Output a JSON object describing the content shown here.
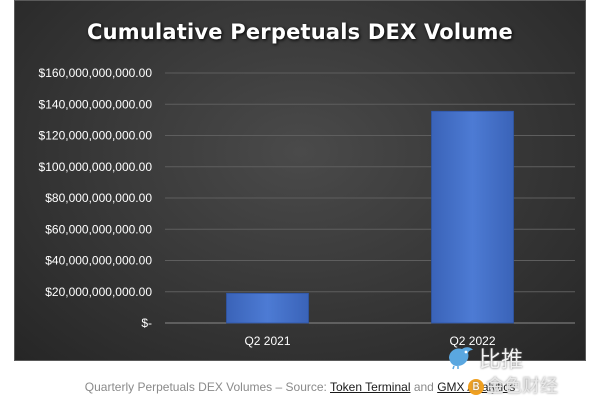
{
  "chart_data": {
    "type": "bar",
    "title": "Cumulative Perpetuals DEX Volume",
    "categories": [
      "Q2 2021",
      "Q2 2022"
    ],
    "values": [
      19000000000,
      135500000000
    ],
    "ylim": [
      0,
      160000000000
    ],
    "yticks": [
      0,
      20000000000,
      40000000000,
      60000000000,
      80000000000,
      100000000000,
      120000000000,
      140000000000,
      160000000000
    ],
    "ytick_labels": [
      "$-",
      "$20,000,000,000.00",
      "$40,000,000,000.00",
      "$60,000,000,000.00",
      "$80,000,000,000.00",
      "$100,000,000,000.00",
      "$120,000,000,000.00",
      "$140,000,000,000.00",
      "$160,000,000,000.00"
    ],
    "xlabel": "",
    "ylabel": "",
    "grid": true,
    "legend": "none",
    "bar_color": "#4472c4",
    "background_color": "#333333",
    "text_color": "#ffffff",
    "grid_color": "#5e5e5e"
  },
  "caption": {
    "prefix": "Quarterly Perpetuals DEX Volumes – Source: ",
    "link1": "Token Terminal",
    "middle": " and ",
    "link2": "GMX Analytics"
  },
  "watermark": {
    "line1": "比推",
    "coin": "B",
    "line2": "金色财经",
    "icon": "bird-logo-icon"
  }
}
